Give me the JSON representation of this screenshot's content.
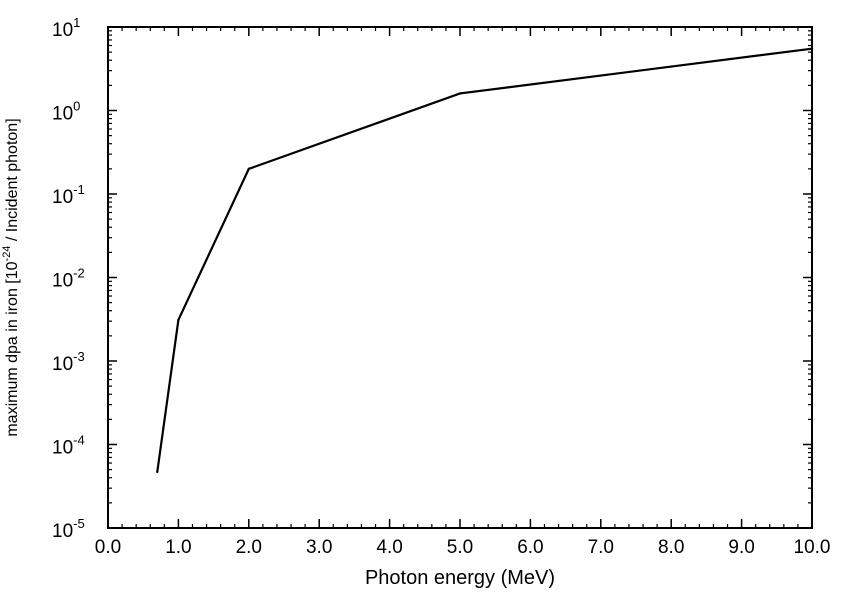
{
  "chart_data": {
    "type": "line",
    "title": "",
    "xlabel": "Photon energy (MeV)",
    "ylabel": {
      "prefix": "maximum dpa in iron [10",
      "exponent": "-24",
      "suffix": " / Incident photon]"
    },
    "xlim": [
      0.0,
      10.0
    ],
    "ylim": [
      1e-05,
      10
    ],
    "yscale": "log",
    "grid": false,
    "legend": "none",
    "x_ticks": [
      "0.0",
      "1.0",
      "2.0",
      "3.0",
      "4.0",
      "5.0",
      "6.0",
      "7.0",
      "8.0",
      "9.0",
      "10.0"
    ],
    "y_ticks": [
      {
        "base": "10",
        "exponent": "-5"
      },
      {
        "base": "10",
        "exponent": "-4"
      },
      {
        "base": "10",
        "exponent": "-3"
      },
      {
        "base": "10",
        "exponent": "-2"
      },
      {
        "base": "10",
        "exponent": "-1"
      },
      {
        "base": "10",
        "exponent": "0"
      },
      {
        "base": "10",
        "exponent": "1"
      }
    ],
    "series": [
      {
        "color": "#000000",
        "x": [
          0.7,
          1.0,
          2.0,
          5.0,
          10.0
        ],
        "y": [
          4.7e-05,
          0.0031,
          0.2,
          1.6,
          5.5
        ]
      }
    ]
  }
}
